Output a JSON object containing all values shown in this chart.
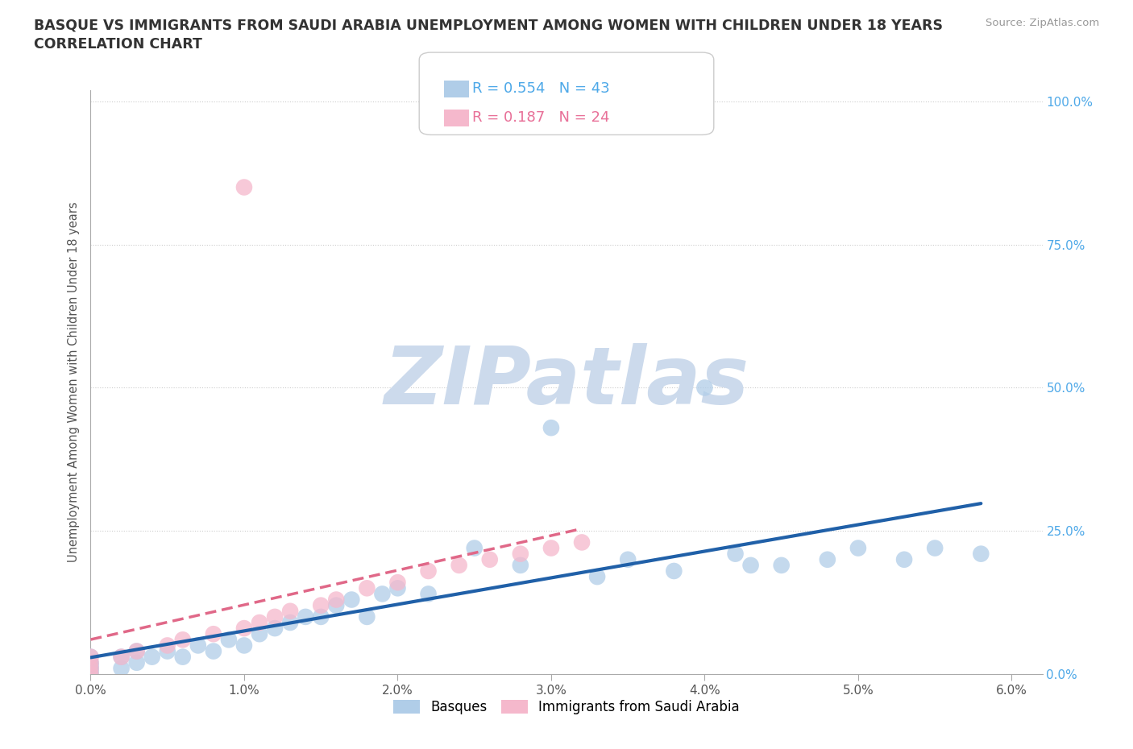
{
  "title_line1": "BASQUE VS IMMIGRANTS FROM SAUDI ARABIA UNEMPLOYMENT AMONG WOMEN WITH CHILDREN UNDER 18 YEARS",
  "title_line2": "CORRELATION CHART",
  "source_text": "Source: ZipAtlas.com",
  "ylabel": "Unemployment Among Women with Children Under 18 years",
  "xlim": [
    0.0,
    0.062
  ],
  "ylim": [
    0.0,
    1.02
  ],
  "xtick_vals": [
    0.0,
    0.01,
    0.02,
    0.03,
    0.04,
    0.05,
    0.06
  ],
  "xtick_labels": [
    "0.0%",
    "1.0%",
    "2.0%",
    "3.0%",
    "4.0%",
    "5.0%",
    "6.0%"
  ],
  "ytick_vals": [
    0.0,
    0.25,
    0.5,
    0.75,
    1.0
  ],
  "ytick_labels": [
    "0.0%",
    "25.0%",
    "50.0%",
    "75.0%",
    "100.0%"
  ],
  "basque_color": "#b0cde8",
  "saudi_color": "#f5b8cc",
  "basque_line_color": "#2060a8",
  "saudi_line_color": "#e06888",
  "watermark_color": "#ccdaec",
  "legend_R_basque": "0.554",
  "legend_N_basque": "43",
  "legend_R_saudi": "0.187",
  "legend_N_saudi": "24",
  "legend_color_basque": "#4da8e8",
  "legend_color_saudi": "#e87098",
  "basque_x": [
    0.0,
    0.0,
    0.0,
    0.0,
    0.0,
    0.0,
    0.002,
    0.002,
    0.003,
    0.003,
    0.004,
    0.005,
    0.006,
    0.007,
    0.008,
    0.009,
    0.01,
    0.011,
    0.012,
    0.013,
    0.014,
    0.015,
    0.016,
    0.017,
    0.018,
    0.019,
    0.02,
    0.022,
    0.025,
    0.028,
    0.03,
    0.033,
    0.035,
    0.038,
    0.04,
    0.042,
    0.043,
    0.045,
    0.048,
    0.05,
    0.053,
    0.055,
    0.058
  ],
  "basque_y": [
    0.0,
    0.005,
    0.01,
    0.015,
    0.02,
    0.03,
    0.01,
    0.03,
    0.02,
    0.04,
    0.03,
    0.04,
    0.03,
    0.05,
    0.04,
    0.06,
    0.05,
    0.07,
    0.08,
    0.09,
    0.1,
    0.1,
    0.12,
    0.13,
    0.1,
    0.14,
    0.15,
    0.14,
    0.22,
    0.19,
    0.43,
    0.17,
    0.2,
    0.18,
    0.5,
    0.21,
    0.19,
    0.19,
    0.2,
    0.22,
    0.2,
    0.22,
    0.21
  ],
  "saudi_x": [
    0.0,
    0.0,
    0.0,
    0.0,
    0.002,
    0.003,
    0.005,
    0.006,
    0.008,
    0.01,
    0.011,
    0.012,
    0.013,
    0.015,
    0.016,
    0.018,
    0.02,
    0.022,
    0.024,
    0.026,
    0.028,
    0.03,
    0.032,
    0.01
  ],
  "saudi_y": [
    0.0,
    0.01,
    0.02,
    0.03,
    0.03,
    0.04,
    0.05,
    0.06,
    0.07,
    0.08,
    0.09,
    0.1,
    0.11,
    0.12,
    0.13,
    0.15,
    0.16,
    0.18,
    0.19,
    0.2,
    0.21,
    0.22,
    0.23,
    0.85
  ]
}
